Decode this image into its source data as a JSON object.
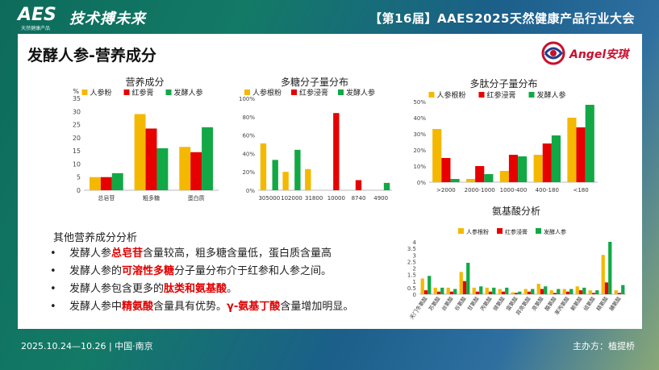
{
  "header": {
    "logo": "AES",
    "logo_sub": "天然健康产品",
    "slogan": "技术搏未来",
    "conference": "【第16届】AAES2025天然健康产品行业大会"
  },
  "slide": {
    "title": "发酵人参-营养成分",
    "brand": "Angel安琪"
  },
  "colors": {
    "yellow": "#f5b800",
    "red": "#e60000",
    "green": "#12a845"
  },
  "analysis": {
    "heading": "其他营养成分分析",
    "b1_pre": "发酵人参",
    "b1_hl": "总皂苷",
    "b1_post": "含量较高，粗多糖含量低，蛋白质含量高",
    "b2_pre": "发酵人参的",
    "b2_hl": "可溶性多糖",
    "b2_post": "分子量分布介于红参和人参之间。",
    "b3_pre": "发酵人参包含更多的",
    "b3_hl": "肽类和氨基酸",
    "b3_post": "。",
    "b4_pre": "发酵人参中",
    "b4_hl": "精氨酸",
    "b4_mid": "含量具有优势。",
    "b4_hl2": "γ-氨基丁酸",
    "b4_post": "含量增加明显。"
  },
  "footer": {
    "date": "2025.10.24—10.26 | 中国·南京",
    "host": "主办方：植提桥"
  },
  "chart_data": [
    {
      "type": "bar",
      "title": "营养成分",
      "ylabel": "%",
      "categories": [
        "总皂苷",
        "粗多糖",
        "蛋白质"
      ],
      "ylim": [
        0,
        35
      ],
      "yticks": [
        "0",
        "5",
        "10",
        "15",
        "20",
        "25",
        "30",
        "35"
      ],
      "series": [
        {
          "name": "人参粉",
          "values": [
            5,
            29,
            16.5
          ]
        },
        {
          "name": "红参膏",
          "values": [
            5,
            23.5,
            14.5
          ]
        },
        {
          "name": "发酵人参",
          "values": [
            6.5,
            16,
            24
          ]
        }
      ]
    },
    {
      "type": "bar",
      "title": "多糖分子量分布",
      "categories": [
        "305000",
        "102000",
        "31800",
        "10000",
        "8740",
        "4900"
      ],
      "ylim": [
        0,
        100
      ],
      "yticks": [
        "0%",
        "20%",
        "40%",
        "60%",
        "80%",
        "100%"
      ],
      "series": [
        {
          "name": "人参根粉",
          "values": [
            51,
            20,
            23,
            0,
            0,
            0
          ]
        },
        {
          "name": "红参浸膏",
          "values": [
            0,
            0,
            0,
            84,
            11,
            0
          ]
        },
        {
          "name": "发酵人参",
          "values": [
            33,
            44,
            0,
            0,
            0,
            8
          ]
        }
      ]
    },
    {
      "type": "bar",
      "title": "多肽分子量分布",
      "categories": [
        ">2000",
        "2000-1000",
        "1000-400",
        "400-180",
        "<180"
      ],
      "ylim": [
        0,
        50
      ],
      "yticks": [
        "0%",
        "10%",
        "20%",
        "30%",
        "40%",
        "50%"
      ],
      "series": [
        {
          "name": "人参根粉",
          "values": [
            33,
            2,
            7,
            17,
            40
          ]
        },
        {
          "name": "红参浸膏",
          "values": [
            15,
            10,
            17,
            24,
            34
          ]
        },
        {
          "name": "发酵人参",
          "values": [
            2,
            5,
            16,
            29,
            48
          ]
        }
      ]
    },
    {
      "type": "bar",
      "title": "氨基酸分析",
      "categories": [
        "天门冬氨酸",
        "苏氨酸",
        "丝氨酸",
        "谷氨酸",
        "甘氨酸",
        "丙氨酸",
        "缬氨酸",
        "蛋氨酸",
        "异亮氨酸",
        "亮氨酸",
        "酪氨酸",
        "苯丙氨酸",
        "赖氨酸",
        "组氨酸",
        "精氨酸",
        "脯氨酸"
      ],
      "ylim": [
        0,
        4
      ],
      "yticks": [
        "0",
        "0.5",
        "1",
        "1.5",
        "2",
        "2.5",
        "3",
        "3.5",
        "4"
      ],
      "series": [
        {
          "name": "人参根粉",
          "values": [
            1.2,
            0.5,
            0.5,
            1.7,
            0.5,
            0.5,
            0.4,
            0.15,
            0.4,
            0.8,
            0.3,
            0.4,
            0.6,
            0.3,
            3.0,
            0.3
          ]
        },
        {
          "name": "红参浸膏",
          "values": [
            0.3,
            0.2,
            0.2,
            1.0,
            0.2,
            0.2,
            0.2,
            0.1,
            0.2,
            0.4,
            0.1,
            0.2,
            0.3,
            0.1,
            0.9,
            0.1
          ]
        },
        {
          "name": "发酵人参",
          "values": [
            1.4,
            0.5,
            0.4,
            2.4,
            0.6,
            0.5,
            0.5,
            0.2,
            0.4,
            0.6,
            0.4,
            0.4,
            0.5,
            0.3,
            4.0,
            0.7
          ]
        }
      ]
    }
  ]
}
